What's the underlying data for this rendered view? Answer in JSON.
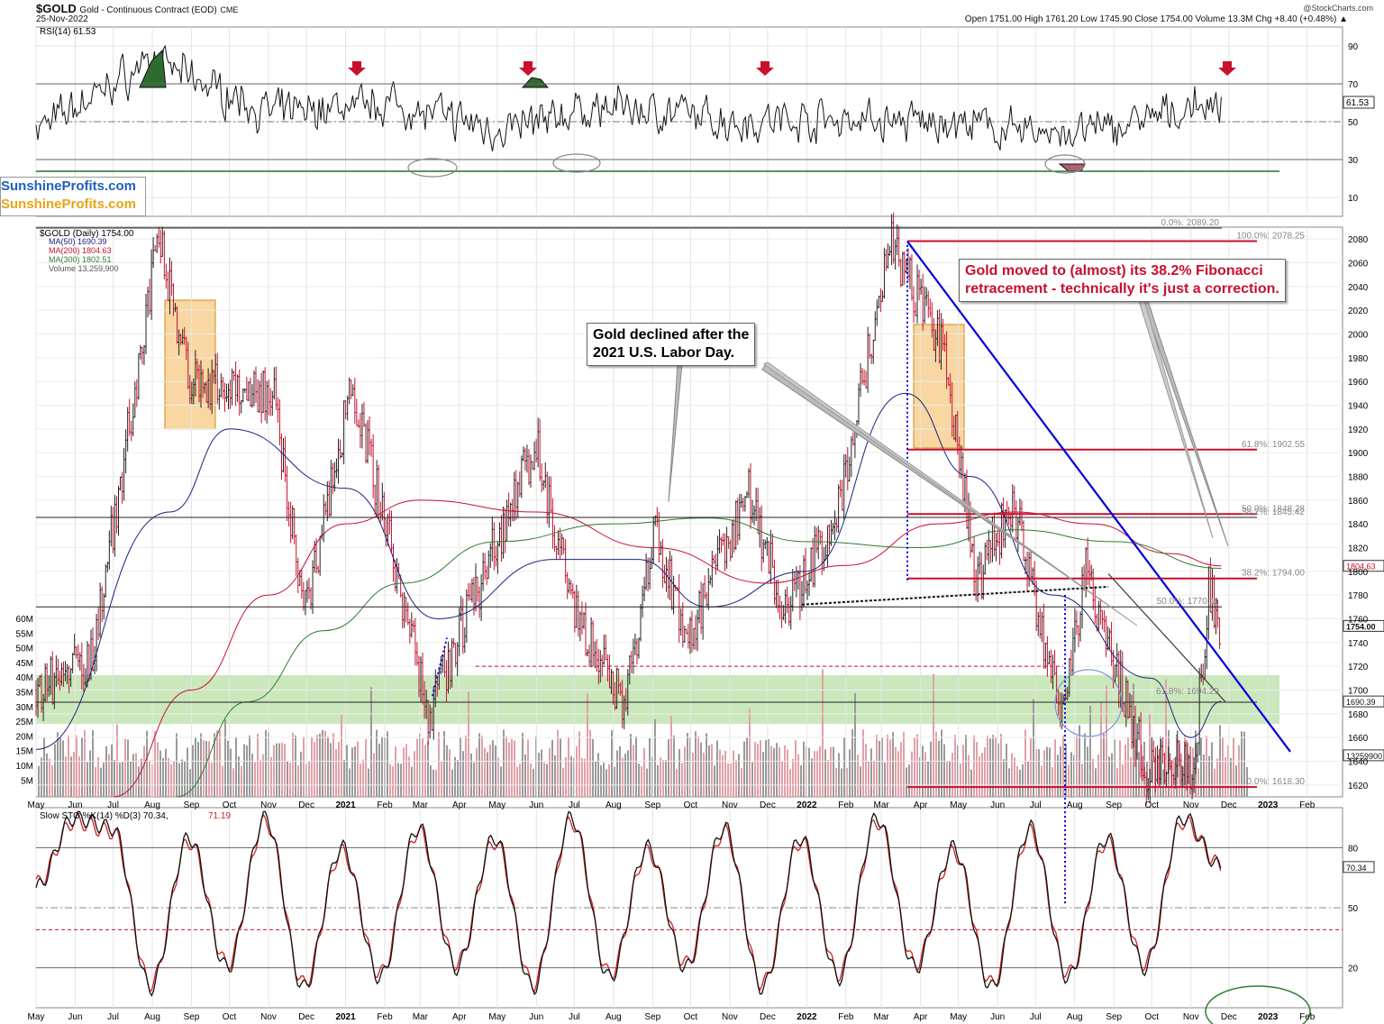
{
  "header": {
    "symbol": "$GOLD",
    "name": "Gold - Continuous Contract (EOD)",
    "exchange": "CME",
    "date": "25-Nov-2022",
    "ohlc": "Open 1751.00  High 1761.20  Low 1745.90  Close 1754.00  Volume 13.3M  Chg +8.40 (+0.48%) ▲",
    "credit": "@StockCharts.com"
  },
  "logo": {
    "line1": "SunshineProfits.com",
    "line2": "SunshineProfits.com"
  },
  "annotations": {
    "fib_note": [
      "Gold moved to (almost) its 38.2% Fibonacci",
      "retracement - technically it's just a correction."
    ],
    "labor_note": [
      "Gold declined after the",
      "2021 U.S. Labor Day."
    ]
  },
  "colors": {
    "price_up": "#222222",
    "price_down": "#c8102e",
    "ma50": "#1a237e",
    "ma200": "#c8102e",
    "ma300": "#2e7d32",
    "trendline": "#0000e0",
    "fib_line": "#c8102e",
    "green_zone": "#b9e0a5",
    "orange_zone": "#f5c67a",
    "rsi_fill_high": "#2e6b2e",
    "arrow": "#c8102e",
    "stoch_d": "#d32020"
  },
  "chart_data": [
    {
      "type": "line",
      "title": "RSI(14) 61.53",
      "ylim": [
        0,
        100
      ],
      "y_ticks": [
        10,
        30,
        50,
        70,
        90
      ],
      "last_label": "61.53",
      "x_dates": [
        "2020-05-01",
        "2020-08-01",
        "2020-11-01",
        "2021-02-01",
        "2021-05-01",
        "2021-08-01",
        "2021-11-01",
        "2022-02-01",
        "2022-05-01",
        "2022-08-01",
        "2022-11-25"
      ],
      "values": [
        45,
        88,
        55,
        62,
        45,
        60,
        50,
        52,
        48,
        42,
        61.53
      ],
      "grid": true
    },
    {
      "type": "line",
      "title": "$GOLD (Daily) 1754.00",
      "legend": [
        "MA(50) 1690.39",
        "MA(200) 1804.63",
        "MA(300) 1802.51",
        "Volume 13,259,900"
      ],
      "ylim": [
        1610,
        2090
      ],
      "y_ticks": [
        1620,
        1640,
        1660,
        1680,
        1700,
        1720,
        1740,
        1760,
        1780,
        1800,
        1820,
        1840,
        1860,
        1880,
        1900,
        1920,
        1940,
        1960,
        1980,
        2000,
        2020,
        2040,
        2060,
        2080
      ],
      "x_labels": [
        "May",
        "Jun",
        "Jul",
        "Aug",
        "Sep",
        "Oct",
        "Nov",
        "Dec",
        "2021",
        "Feb",
        "Mar",
        "Apr",
        "May",
        "Jun",
        "Jul",
        "Aug",
        "Sep",
        "Oct",
        "Nov",
        "Dec",
        "2022",
        "Feb",
        "Mar",
        "Apr",
        "May",
        "Jun",
        "Jul",
        "Aug",
        "Sep",
        "Oct",
        "Nov",
        "Dec",
        "2023",
        "Feb"
      ],
      "series": [
        {
          "name": "$GOLD (Daily) 1754.00",
          "x": [
            "2020-05-01",
            "2020-06-15",
            "2020-08-06",
            "2020-09-01",
            "2020-11-05",
            "2020-11-30",
            "2021-01-06",
            "2021-03-08",
            "2021-06-01",
            "2021-06-30",
            "2021-08-09",
            "2021-09-03",
            "2021-09-29",
            "2021-11-16",
            "2021-12-15",
            "2022-01-25",
            "2022-03-08",
            "2022-04-18",
            "2022-05-16",
            "2022-06-13",
            "2022-07-21",
            "2022-08-10",
            "2022-09-28",
            "2022-10-21",
            "2022-11-03",
            "2022-11-15",
            "2022-11-25"
          ],
          "values": [
            1700,
            1730,
            2080,
            1960,
            1950,
            1765,
            1960,
            1680,
            1910,
            1765,
            1690,
            1830,
            1740,
            1870,
            1760,
            1850,
            2078,
            1990,
            1790,
            1860,
            1680,
            1800,
            1630,
            1640,
            1630,
            1785,
            1754
          ]
        },
        {
          "name": "MA(50) 1690.39",
          "x": [
            "2020-05-01",
            "2020-08-15",
            "2020-10-01",
            "2021-01-01",
            "2021-03-15",
            "2021-06-15",
            "2021-08-20",
            "2021-10-15",
            "2021-12-31",
            "2022-03-20",
            "2022-05-10",
            "2022-07-15",
            "2022-09-30",
            "2022-11-01",
            "2022-11-25"
          ],
          "values": [
            1650,
            1850,
            1920,
            1870,
            1760,
            1810,
            1810,
            1770,
            1800,
            1950,
            1880,
            1780,
            1710,
            1660,
            1690.39
          ]
        },
        {
          "name": "MA(200) 1804.63",
          "x": [
            "2020-07-01",
            "2020-09-01",
            "2020-11-01",
            "2021-01-01",
            "2021-03-01",
            "2021-06-01",
            "2021-09-01",
            "2021-12-01",
            "2022-02-01",
            "2022-04-15",
            "2022-06-15",
            "2022-08-15",
            "2022-10-15",
            "2022-11-25"
          ],
          "values": [
            1610,
            1700,
            1780,
            1840,
            1860,
            1850,
            1820,
            1790,
            1805,
            1840,
            1850,
            1840,
            1815,
            1804.63
          ]
        },
        {
          "name": "MA(300) 1802.51",
          "x": [
            "2020-08-20",
            "2020-10-15",
            "2020-12-15",
            "2021-02-15",
            "2021-05-01",
            "2021-08-01",
            "2021-10-15",
            "2022-01-01",
            "2022-04-01",
            "2022-06-15",
            "2022-09-01",
            "2022-11-25"
          ],
          "values": [
            1610,
            1690,
            1750,
            1790,
            1825,
            1840,
            1845,
            1825,
            1820,
            1835,
            1825,
            1802.51
          ]
        }
      ],
      "fibonacci": [
        {
          "label": "0.0%: 2089.20",
          "value": 2089.2
        },
        {
          "label": "100.0%: 2078.25",
          "value": 2078.25
        },
        {
          "label": "61.8%: 1902.55",
          "value": 1902.55
        },
        {
          "label": "50.0%: 1848.28",
          "value": 1848.28
        },
        {
          "label": "38.2%: 1845.42",
          "value": 1845.42
        },
        {
          "label": "38.2%: 1794.00",
          "value": 1794.0
        },
        {
          "label": "50.0%: 1770.11",
          "value": 1770.11
        },
        {
          "label": "61.8%: 1694.29",
          "value": 1694.29
        },
        {
          "label": "0.0%: 1618.30",
          "value": 1618.3
        }
      ],
      "right_labels": [
        {
          "label": "1804.63",
          "value": 1804.63
        },
        {
          "label": "1754.00",
          "value": 1754.0
        },
        {
          "label": "1690.39",
          "value": 1690.39
        },
        {
          "label": "13259900",
          "value": 1645
        }
      ],
      "volume_ticks": [
        "60M",
        "55M",
        "50M",
        "45M",
        "40M",
        "35M",
        "30M",
        "25M",
        "20M",
        "15M",
        "10M",
        "5M"
      ],
      "grid": true
    },
    {
      "type": "line",
      "title": "Slow STO %K(14) %D(3) 70.34, 71.19",
      "title_parts": [
        "Slow STO %K(14) %D(3) 70.34,",
        "71.19"
      ],
      "ylim": [
        0,
        100
      ],
      "y_ticks": [
        20,
        50,
        80
      ],
      "last_label": "70.34",
      "x_labels": [
        "May",
        "Jun",
        "Jul",
        "Aug",
        "Sep",
        "Oct",
        "Nov",
        "Dec",
        "2021",
        "Feb",
        "Mar",
        "Apr",
        "May",
        "Jun",
        "Jul",
        "Aug",
        "Sep",
        "Oct",
        "Nov",
        "Dec",
        "2022",
        "Feb",
        "Mar",
        "Apr",
        "May",
        "Jun",
        "Jul",
        "Aug",
        "Sep",
        "Oct",
        "Nov",
        "Dec",
        "2023",
        "Feb"
      ],
      "values_k": [
        60,
        95,
        90,
        10,
        85,
        20,
        95,
        10,
        80,
        15,
        90,
        20,
        85,
        10,
        95,
        15,
        80,
        20,
        90,
        10,
        85,
        15,
        95,
        20,
        80,
        10,
        90,
        15,
        85,
        20,
        95,
        70.34
      ],
      "values_d": [
        62,
        93,
        88,
        12,
        83,
        22,
        93,
        12,
        78,
        17,
        88,
        22,
        83,
        12,
        93,
        17,
        78,
        22,
        88,
        12,
        83,
        17,
        93,
        22,
        78,
        12,
        88,
        17,
        83,
        22,
        93,
        71.19
      ],
      "grid": true
    }
  ]
}
